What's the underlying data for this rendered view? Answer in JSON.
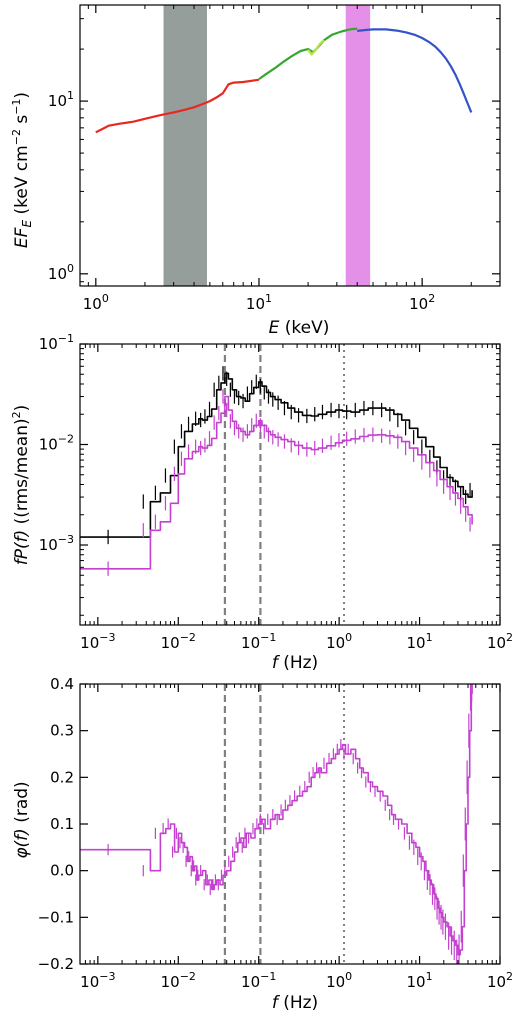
{
  "chart_data": [
    {
      "type": "line",
      "xlabel_sym": "E",
      "xlabel_unit": " (keV)",
      "ylabel_sym": "EF",
      "ylabel_sub": "E",
      "ylabel_unit": " (keV cm",
      "ylabel_exp1": "−2",
      "ylabel_mid": " s",
      "ylabel_exp2": "−1",
      "ylabel_end": ")",
      "xscale": "log",
      "yscale": "log",
      "xlim": [
        0.8,
        300
      ],
      "ylim": [
        0.85,
        36
      ],
      "xticks": [
        {
          "value": 1,
          "base": "10",
          "exp": "0"
        },
        {
          "value": 10,
          "base": "10",
          "exp": "1"
        },
        {
          "value": 100,
          "base": "10",
          "exp": "2"
        }
      ],
      "yticks": [
        {
          "value": 1,
          "base": "10",
          "exp": "0"
        },
        {
          "value": 10,
          "base": "10",
          "exp": "1"
        }
      ],
      "bands": [
        {
          "x0": 2.6,
          "x1": 4.8,
          "color": "#969e9c"
        },
        {
          "x0": 34,
          "x1": 48,
          "color": "#e590e8"
        }
      ],
      "series": [
        {
          "color": "#e8281f",
          "x": [
            1.0,
            1.1,
            1.2,
            1.4,
            1.7,
            2.0,
            2.5,
            3.0,
            3.5,
            4.0,
            4.5,
            5.0,
            5.5,
            6.0,
            6.5,
            7.0,
            8.0,
            9.0,
            10.0
          ],
          "y": [
            6.6,
            6.9,
            7.2,
            7.4,
            7.6,
            7.9,
            8.3,
            8.6,
            8.9,
            9.2,
            9.6,
            10.0,
            10.5,
            11.1,
            12.5,
            12.8,
            12.9,
            13.1,
            13.3
          ]
        },
        {
          "color": "#37a82f",
          "x": [
            10.0,
            11.0,
            12.5,
            14.0,
            16.0,
            18.0,
            20.0,
            21.5,
            23.0,
            25.0,
            28.0,
            32.0,
            36.0,
            40.0
          ],
          "y": [
            13.4,
            14.3,
            15.5,
            16.8,
            18.3,
            19.5,
            20.0,
            19.2,
            20.5,
            22.5,
            24.2,
            25.3,
            26.0,
            26.3
          ]
        },
        {
          "color": "#b6e34a",
          "x": [
            20.0,
            21.0,
            22.0,
            23.5,
            25.0
          ],
          "y": [
            19.8,
            18.6,
            19.5,
            21.3,
            22.6
          ]
        },
        {
          "color": "#3453c9",
          "x": [
            40.0,
            45.0,
            50.0,
            60.0,
            70.0,
            80.0,
            90.0,
            100.0,
            110.0,
            120.0,
            130.0,
            140.0,
            150.0,
            160.0,
            170.0,
            180.0,
            190.0,
            200.0
          ],
          "y": [
            25.5,
            25.8,
            26.0,
            26.0,
            25.6,
            25.0,
            24.2,
            23.2,
            22.0,
            20.7,
            19.2,
            17.6,
            15.9,
            14.2,
            12.5,
            11.0,
            9.7,
            8.6
          ]
        }
      ]
    },
    {
      "type": "line",
      "xlabel_sym": "f",
      "xlabel_unit": " (Hz)",
      "ylabel_sym": "fP(f)",
      "ylabel_unit": " ((rms/mean)",
      "ylabel_exp1": "2",
      "ylabel_end": ")",
      "xscale": "log",
      "yscale": "log",
      "xlim": [
        0.0006,
        100
      ],
      "ylim": [
        0.00016,
        0.1
      ],
      "xticks": [
        {
          "value": 0.001,
          "base": "10",
          "exp": "−3"
        },
        {
          "value": 0.01,
          "base": "10",
          "exp": "−2"
        },
        {
          "value": 0.1,
          "base": "10",
          "exp": "−1"
        },
        {
          "value": 1,
          "base": "10",
          "exp": "0"
        },
        {
          "value": 10,
          "base": "10",
          "exp": "1"
        },
        {
          "value": 100,
          "base": "10",
          "exp": "2"
        }
      ],
      "yticks": [
        {
          "value": 0.001,
          "base": "10",
          "exp": "−3"
        },
        {
          "value": 0.01,
          "base": "10",
          "exp": "−2"
        },
        {
          "value": 0.1,
          "base": "10",
          "exp": "−1"
        }
      ],
      "vlines": [
        {
          "x": 0.038,
          "style": "dashed"
        },
        {
          "x": 0.105,
          "style": "dashed"
        },
        {
          "x": 1.15,
          "style": "dotted"
        }
      ],
      "series": [
        {
          "color": "#000000",
          "x": [
            0.0006,
            0.003,
            0.0045,
            0.006,
            0.008,
            0.01,
            0.012,
            0.015,
            0.018,
            0.02,
            0.023,
            0.026,
            0.03,
            0.034,
            0.038,
            0.042,
            0.047,
            0.053,
            0.06,
            0.068,
            0.077,
            0.087,
            0.1,
            0.11,
            0.125,
            0.14,
            0.16,
            0.19,
            0.23,
            0.28,
            0.35,
            0.45,
            0.55,
            0.7,
            0.9,
            1.1,
            1.4,
            1.8,
            2.3,
            3.0,
            3.8,
            4.8,
            6.0,
            7.5,
            9.5,
            12,
            15,
            18,
            22,
            26,
            30,
            35,
            40,
            45
          ],
          "y": [
            0.0012,
            0.0012,
            0.0027,
            0.0033,
            0.0049,
            0.0095,
            0.0135,
            0.016,
            0.018,
            0.0175,
            0.019,
            0.0225,
            0.035,
            0.041,
            0.051,
            0.045,
            0.035,
            0.03,
            0.029,
            0.027,
            0.032,
            0.037,
            0.042,
            0.038,
            0.033,
            0.03,
            0.028,
            0.026,
            0.023,
            0.021,
            0.0195,
            0.0192,
            0.02,
            0.021,
            0.022,
            0.0215,
            0.021,
            0.022,
            0.023,
            0.023,
            0.022,
            0.02,
            0.0175,
            0.0145,
            0.0118,
            0.0095,
            0.0075,
            0.0059,
            0.0047,
            0.0043,
            0.0038,
            0.0032,
            0.003,
            0.0035
          ]
        },
        {
          "color": "#c441d0",
          "x": [
            0.0006,
            0.003,
            0.0045,
            0.006,
            0.008,
            0.01,
            0.012,
            0.015,
            0.018,
            0.02,
            0.023,
            0.026,
            0.03,
            0.034,
            0.038,
            0.042,
            0.047,
            0.053,
            0.06,
            0.068,
            0.077,
            0.087,
            0.1,
            0.11,
            0.125,
            0.14,
            0.16,
            0.19,
            0.23,
            0.28,
            0.35,
            0.45,
            0.55,
            0.7,
            0.9,
            1.1,
            1.4,
            1.8,
            2.3,
            3.0,
            3.8,
            4.8,
            6.0,
            7.5,
            9.5,
            12,
            15,
            18,
            22,
            26,
            30,
            35,
            40,
            45
          ],
          "y": [
            0.00058,
            0.00058,
            0.0014,
            0.0017,
            0.0026,
            0.0051,
            0.0072,
            0.0085,
            0.0095,
            0.0092,
            0.0098,
            0.0115,
            0.0165,
            0.0205,
            0.03,
            0.022,
            0.017,
            0.0145,
            0.0135,
            0.0125,
            0.0135,
            0.0155,
            0.0172,
            0.0155,
            0.0135,
            0.0125,
            0.0118,
            0.0112,
            0.0107,
            0.0098,
            0.0092,
            0.0089,
            0.0092,
            0.0097,
            0.0104,
            0.011,
            0.0114,
            0.012,
            0.0124,
            0.0125,
            0.0122,
            0.0118,
            0.0107,
            0.0092,
            0.0079,
            0.0066,
            0.0055,
            0.0045,
            0.0038,
            0.0033,
            0.0029,
            0.0024,
            0.002,
            0.0016
          ]
        }
      ]
    },
    {
      "type": "line",
      "xlabel_sym": "f",
      "xlabel_unit": " (Hz)",
      "ylabel_sym": "φ(f)",
      "ylabel_unit": " (rad)",
      "xscale": "log",
      "yscale": "linear",
      "xlim": [
        0.0006,
        100
      ],
      "ylim": [
        -0.2,
        0.4
      ],
      "xticks": [
        {
          "value": 0.001,
          "base": "10",
          "exp": "−3"
        },
        {
          "value": 0.01,
          "base": "10",
          "exp": "−2"
        },
        {
          "value": 0.1,
          "base": "10",
          "exp": "−1"
        },
        {
          "value": 1,
          "base": "10",
          "exp": "0"
        },
        {
          "value": 10,
          "base": "10",
          "exp": "1"
        },
        {
          "value": 100,
          "base": "10",
          "exp": "2"
        }
      ],
      "yticks": [
        {
          "value": -0.2,
          "label": "−0.2"
        },
        {
          "value": -0.1,
          "label": "−0.1"
        },
        {
          "value": 0.0,
          "label": "0.0"
        },
        {
          "value": 0.1,
          "label": "0.1"
        },
        {
          "value": 0.2,
          "label": "0.2"
        },
        {
          "value": 0.3,
          "label": "0.3"
        },
        {
          "value": 0.4,
          "label": "0.4"
        }
      ],
      "vlines": [
        {
          "x": 0.038,
          "style": "dashed"
        },
        {
          "x": 0.105,
          "style": "dashed"
        },
        {
          "x": 1.15,
          "style": "dotted"
        }
      ],
      "series": [
        {
          "color": "#c441d0",
          "x": [
            0.0006,
            0.003,
            0.0045,
            0.006,
            0.007,
            0.008,
            0.009,
            0.01,
            0.011,
            0.012,
            0.013,
            0.014,
            0.015,
            0.016,
            0.017,
            0.018,
            0.02,
            0.022,
            0.024,
            0.026,
            0.028,
            0.03,
            0.033,
            0.036,
            0.04,
            0.045,
            0.05,
            0.055,
            0.06,
            0.065,
            0.07,
            0.08,
            0.09,
            0.1,
            0.11,
            0.12,
            0.14,
            0.16,
            0.18,
            0.2,
            0.23,
            0.26,
            0.3,
            0.35,
            0.4,
            0.45,
            0.5,
            0.55,
            0.6,
            0.7,
            0.8,
            0.9,
            1.0,
            1.1,
            1.2,
            1.4,
            1.6,
            1.8,
            2.0,
            2.3,
            2.6,
            3.0,
            3.5,
            4.0,
            4.5,
            5.0,
            6.0,
            7.0,
            8.0,
            9.0,
            10,
            11,
            12,
            13,
            14,
            15,
            16,
            17,
            18,
            19,
            20,
            22,
            24,
            26,
            28,
            30,
            32,
            34,
            36,
            38,
            40,
            42,
            44,
            45
          ],
          "y": [
            0.045,
            0.045,
            0.0,
            0.08,
            0.09,
            0.1,
            0.04,
            0.08,
            0.06,
            0.05,
            0.02,
            0.03,
            0.0,
            0.01,
            -0.02,
            -0.01,
            0.0,
            -0.03,
            -0.02,
            -0.04,
            -0.03,
            -0.02,
            -0.03,
            -0.01,
            0.0,
            0.02,
            0.04,
            0.06,
            0.07,
            0.05,
            0.08,
            0.07,
            0.09,
            0.1,
            0.11,
            0.09,
            0.11,
            0.12,
            0.11,
            0.13,
            0.14,
            0.15,
            0.16,
            0.17,
            0.18,
            0.2,
            0.21,
            0.22,
            0.21,
            0.23,
            0.24,
            0.25,
            0.26,
            0.27,
            0.25,
            0.26,
            0.24,
            0.22,
            0.21,
            0.19,
            0.18,
            0.17,
            0.16,
            0.14,
            0.12,
            0.11,
            0.1,
            0.08,
            0.06,
            0.05,
            0.03,
            0.02,
            0.0,
            -0.02,
            -0.03,
            -0.05,
            -0.06,
            -0.08,
            -0.09,
            -0.1,
            -0.11,
            -0.12,
            -0.14,
            -0.15,
            -0.16,
            -0.18,
            -0.17,
            -0.12,
            0.0,
            0.1,
            0.2,
            0.3,
            0.38,
            0.4
          ]
        }
      ]
    }
  ]
}
